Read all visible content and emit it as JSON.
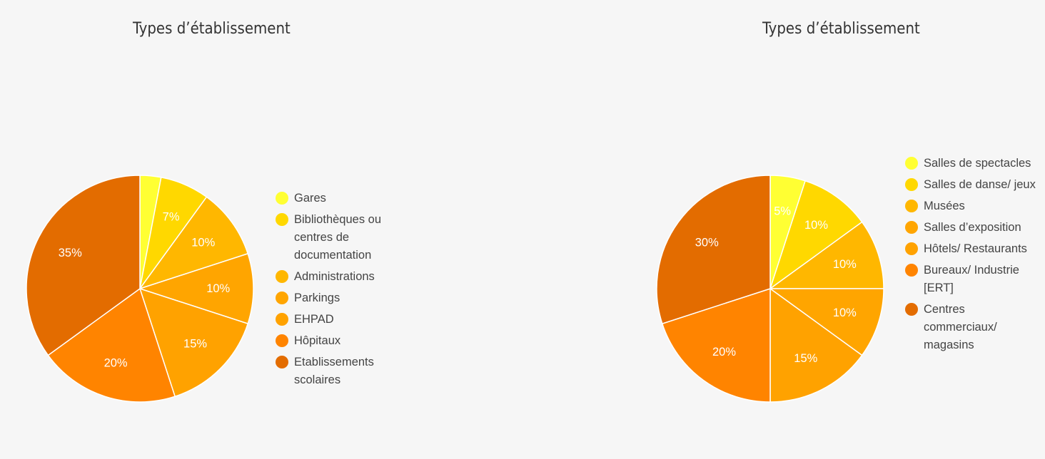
{
  "chart_data": [
    {
      "type": "pie",
      "title": "Types d’établissement",
      "legend_position": "right",
      "slices": [
        {
          "label": "Gares",
          "value": 3,
          "display": "",
          "color": "#ffff33"
        },
        {
          "label": "Bibliothèques ou centres de documentation",
          "value": 7,
          "display": "7%",
          "color": "#ffd800"
        },
        {
          "label": "Administrations",
          "value": 10,
          "display": "10%",
          "color": "#ffb700"
        },
        {
          "label": "Parkings",
          "value": 10,
          "display": "10%",
          "color": "#ffa500"
        },
        {
          "label": "EHPAD",
          "value": 15,
          "display": "15%",
          "color": "#ffa200"
        },
        {
          "label": "Hôpitaux",
          "value": 20,
          "display": "20%",
          "color": "#ff8400"
        },
        {
          "label": "Etablissements scolaires",
          "value": 35,
          "display": "35%",
          "color": "#e36c00"
        }
      ]
    },
    {
      "type": "pie",
      "title": "Types d’établissement",
      "legend_position": "right",
      "slices": [
        {
          "label": "Salles de spectacles",
          "value": 5,
          "display": "5%",
          "color": "#ffff33"
        },
        {
          "label": "Salles de danse/ jeux",
          "value": 10,
          "display": "10%",
          "color": "#ffd800"
        },
        {
          "label": "Musées",
          "value": 10,
          "display": "10%",
          "color": "#ffb700"
        },
        {
          "label": "Salles d’exposition",
          "value": 10,
          "display": "10%",
          "color": "#ffa500"
        },
        {
          "label": "Hôtels/ Restaurants",
          "value": 15,
          "display": "15%",
          "color": "#ffa200"
        },
        {
          "label": "Bureaux/ Industrie [ERT]",
          "value": 20,
          "display": "20%",
          "color": "#ff8400"
        },
        {
          "label": "Centres commerciaux/ magasins",
          "value": 30,
          "display": "30%",
          "color": "#e36c00"
        }
      ]
    }
  ]
}
